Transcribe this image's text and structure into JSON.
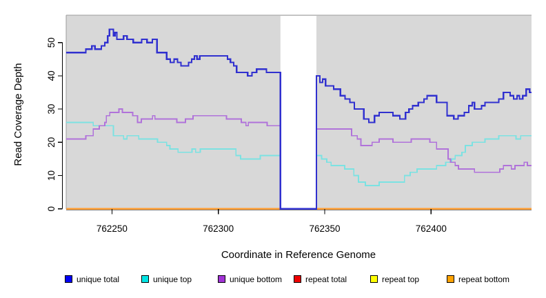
{
  "chart_data": {
    "type": "line",
    "subtype": "step-coverage",
    "title": "",
    "xlabel": "Coordinate in Reference Genome",
    "ylabel": "Read Coverage Depth",
    "xlim": [
      762228.5,
      762447.2
    ],
    "ylim": [
      0,
      58.3
    ],
    "x_ticks": [
      762250,
      762300,
      762350,
      762400
    ],
    "y_ticks": [
      0,
      10,
      20,
      30,
      40,
      50
    ],
    "grid": false,
    "panel_background": "#d8d8d8",
    "panel_border_color": "#9c9c9c",
    "masked_region": {
      "x_start": 762329.2,
      "x_end": 762346.1,
      "fill": "#ffffff"
    },
    "legend_position": "bottom",
    "series": [
      {
        "name": "unique total",
        "color": "#3030cf",
        "legend_color": "#0000f5",
        "width": 2.2,
        "steps": [
          [
            762228.5,
            47
          ],
          [
            762237.7,
            48
          ],
          [
            762240.6,
            49
          ],
          [
            762242,
            48
          ],
          [
            762245,
            49
          ],
          [
            762246.6,
            50
          ],
          [
            762248,
            52
          ],
          [
            762248.8,
            54
          ],
          [
            762250.7,
            52
          ],
          [
            762251.4,
            53
          ],
          [
            762252.3,
            51
          ],
          [
            762255.5,
            52
          ],
          [
            762257.1,
            51
          ],
          [
            762260,
            50
          ],
          [
            762264,
            51
          ],
          [
            762266.5,
            50
          ],
          [
            762269,
            51
          ],
          [
            762271.2,
            47
          ],
          [
            762275.7,
            45
          ],
          [
            762277.4,
            44
          ],
          [
            762279.2,
            45
          ],
          [
            762280.8,
            44
          ],
          [
            762282.4,
            43
          ],
          [
            762286,
            44
          ],
          [
            762287.5,
            45
          ],
          [
            762288.8,
            46
          ],
          [
            762290,
            45
          ],
          [
            762291.3,
            46
          ],
          [
            762304.3,
            45
          ],
          [
            762305.7,
            44
          ],
          [
            762307.2,
            43
          ],
          [
            762308.6,
            41
          ],
          [
            762313.8,
            40
          ],
          [
            762315.8,
            41
          ],
          [
            762318,
            42
          ],
          [
            762322.6,
            41
          ],
          [
            762329.2,
            0
          ],
          [
            762346.1,
            40
          ],
          [
            762347.7,
            38
          ],
          [
            762349,
            39
          ],
          [
            762350.4,
            37
          ],
          [
            762354.2,
            36
          ],
          [
            762357.4,
            34
          ],
          [
            762359.6,
            33
          ],
          [
            762361.8,
            32
          ],
          [
            762363.9,
            30
          ],
          [
            762368.4,
            27
          ],
          [
            762370.7,
            26
          ],
          [
            762373.4,
            28
          ],
          [
            762375.6,
            29
          ],
          [
            762382.1,
            28
          ],
          [
            762385.3,
            27
          ],
          [
            762388,
            29
          ],
          [
            762389.6,
            30
          ],
          [
            762391.3,
            31
          ],
          [
            762394,
            32
          ],
          [
            762396.7,
            33
          ],
          [
            762398.1,
            34
          ],
          [
            762402.6,
            32
          ],
          [
            762407.5,
            28
          ],
          [
            762410.7,
            27
          ],
          [
            762412.7,
            28
          ],
          [
            762415.6,
            29
          ],
          [
            762417.7,
            31
          ],
          [
            762419.3,
            32
          ],
          [
            762420.4,
            30
          ],
          [
            762423.7,
            31
          ],
          [
            762425.3,
            32
          ],
          [
            762431.8,
            33
          ],
          [
            762434,
            35
          ],
          [
            762437.2,
            34
          ],
          [
            762438.8,
            33
          ],
          [
            762440.4,
            34
          ],
          [
            762441.5,
            33
          ],
          [
            762443.1,
            34
          ],
          [
            762444.7,
            36
          ],
          [
            762446.3,
            35
          ]
        ]
      },
      {
        "name": "unique top",
        "color": "#7be2e2",
        "legend_color": "#00e5e5",
        "width": 1.8,
        "steps": [
          [
            762228.5,
            26
          ],
          [
            762241.2,
            25
          ],
          [
            762250.7,
            22
          ],
          [
            762255.5,
            21
          ],
          [
            762257.1,
            22
          ],
          [
            762262.6,
            21
          ],
          [
            762271.4,
            20
          ],
          [
            762275.7,
            19
          ],
          [
            762277.3,
            18
          ],
          [
            762281.1,
            17
          ],
          [
            762287.6,
            18
          ],
          [
            762289.3,
            17
          ],
          [
            762291.5,
            18
          ],
          [
            762308.3,
            16
          ],
          [
            762310.5,
            15
          ],
          [
            762319.7,
            16
          ],
          [
            762329.2,
            0
          ],
          [
            762346.1,
            16
          ],
          [
            762348.5,
            15
          ],
          [
            762351,
            14
          ],
          [
            762353,
            13
          ],
          [
            762359.4,
            12
          ],
          [
            762363.7,
            10
          ],
          [
            762365.9,
            8
          ],
          [
            762369.1,
            7
          ],
          [
            762375.6,
            8
          ],
          [
            762387.5,
            10
          ],
          [
            762390.2,
            11
          ],
          [
            762393.4,
            12
          ],
          [
            762402.6,
            13
          ],
          [
            762406.9,
            14
          ],
          [
            762409.6,
            15
          ],
          [
            762411.3,
            16
          ],
          [
            762414.5,
            17
          ],
          [
            762416.1,
            19
          ],
          [
            762419.3,
            20
          ],
          [
            762425.3,
            21
          ],
          [
            762431.8,
            22
          ],
          [
            762439.9,
            21
          ],
          [
            762442.1,
            22
          ]
        ]
      },
      {
        "name": "unique bottom",
        "color": "#b072da",
        "legend_color": "#a233d6",
        "width": 1.8,
        "steps": [
          [
            762228.5,
            21
          ],
          [
            762237.7,
            22
          ],
          [
            762241.2,
            24
          ],
          [
            762244.1,
            25
          ],
          [
            762246.6,
            26
          ],
          [
            762247.4,
            28
          ],
          [
            762249,
            29
          ],
          [
            762253.3,
            30
          ],
          [
            762254.9,
            29
          ],
          [
            762259.8,
            28
          ],
          [
            762262,
            26
          ],
          [
            762263.8,
            27
          ],
          [
            762269.1,
            28
          ],
          [
            762270.2,
            27
          ],
          [
            762280.5,
            26
          ],
          [
            762284.6,
            27
          ],
          [
            762288.1,
            28
          ],
          [
            762303.8,
            27
          ],
          [
            762310.8,
            26
          ],
          [
            762313,
            25
          ],
          [
            762314.1,
            26
          ],
          [
            762322.9,
            25
          ],
          [
            762329.2,
            0
          ],
          [
            762346.1,
            24
          ],
          [
            762362.6,
            22
          ],
          [
            762365.3,
            21
          ],
          [
            762367,
            19
          ],
          [
            762372.3,
            20
          ],
          [
            762375.6,
            21
          ],
          [
            762382.1,
            20
          ],
          [
            762390.7,
            21
          ],
          [
            762399.4,
            20
          ],
          [
            762402.6,
            18
          ],
          [
            762408,
            15
          ],
          [
            762409.1,
            14
          ],
          [
            762411.3,
            13
          ],
          [
            762412.9,
            12
          ],
          [
            762420.4,
            11
          ],
          [
            762432.3,
            12
          ],
          [
            762434,
            13
          ],
          [
            762437.7,
            12
          ],
          [
            762439.4,
            13
          ],
          [
            762443.7,
            14
          ],
          [
            762445.3,
            13
          ]
        ]
      },
      {
        "name": "repeat total",
        "color": "#dd0000",
        "legend_color": "#ee0000",
        "width": 2,
        "steps": [
          [
            762228.5,
            0
          ]
        ]
      },
      {
        "name": "repeat top",
        "color": "#ffff00",
        "legend_color": "#ffff00",
        "width": 2,
        "steps": [
          [
            762228.5,
            0
          ]
        ]
      },
      {
        "name": "repeat bottom",
        "color": "#ff9d30",
        "legend_color": "#ffa300",
        "width": 2.4,
        "steps": [
          [
            762228.5,
            0
          ]
        ]
      }
    ]
  },
  "legend": {
    "item_x": [
      94,
      205,
      316,
      426,
      537,
      648
    ]
  }
}
